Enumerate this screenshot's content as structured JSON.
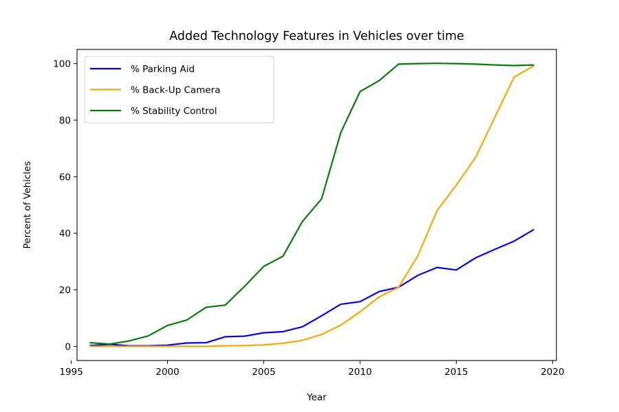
{
  "chart_data": {
    "type": "line",
    "title": "Added Technology Features in Vehicles over time",
    "xlabel": "Year",
    "ylabel": "Percent of Vehicles",
    "xlim": [
      1995.3,
      2020.2
    ],
    "ylim": [
      -5,
      105
    ],
    "xticks": [
      1995,
      2000,
      2005,
      2010,
      2015,
      2020
    ],
    "yticks": [
      0,
      20,
      40,
      60,
      80,
      100
    ],
    "grid": false,
    "legend_position": "top-left",
    "x": [
      1996,
      1997,
      1998,
      1999,
      2000,
      2001,
      2002,
      2003,
      2004,
      2005,
      2006,
      2007,
      2008,
      2009,
      2010,
      2011,
      2012,
      2013,
      2014,
      2015,
      2016,
      2017,
      2018,
      2019
    ],
    "series": [
      {
        "name": "% Parking Aid",
        "color": "#0000ff",
        "values": [
          0.3,
          0.7,
          0.2,
          0.2,
          0.4,
          1.2,
          1.3,
          3.4,
          3.6,
          4.8,
          5.2,
          6.9,
          10.8,
          14.9,
          15.8,
          19.4,
          20.9,
          25.1,
          27.9,
          27.0,
          31.3,
          34.3,
          37.2,
          41.2
        ]
      },
      {
        "name": "% Back-Up Camera",
        "color": "#ffa500",
        "values": [
          0.0,
          0.0,
          0.0,
          0.0,
          0.0,
          0.0,
          0.0,
          0.2,
          0.3,
          0.5,
          1.1,
          2.1,
          4.2,
          7.5,
          12.2,
          17.5,
          20.9,
          32.0,
          48.0,
          57.0,
          66.8,
          81.0,
          95.2,
          99.1
        ]
      },
      {
        "name": "% Stability Control",
        "color": "#008000",
        "values": [
          1.3,
          0.8,
          1.9,
          3.7,
          7.4,
          9.3,
          13.8,
          14.6,
          21.2,
          28.3,
          31.9,
          44.1,
          52.1,
          75.6,
          90.1,
          94.0,
          99.8,
          100.0,
          100.1,
          100.0,
          99.8,
          99.5,
          99.3,
          99.5
        ]
      }
    ]
  }
}
